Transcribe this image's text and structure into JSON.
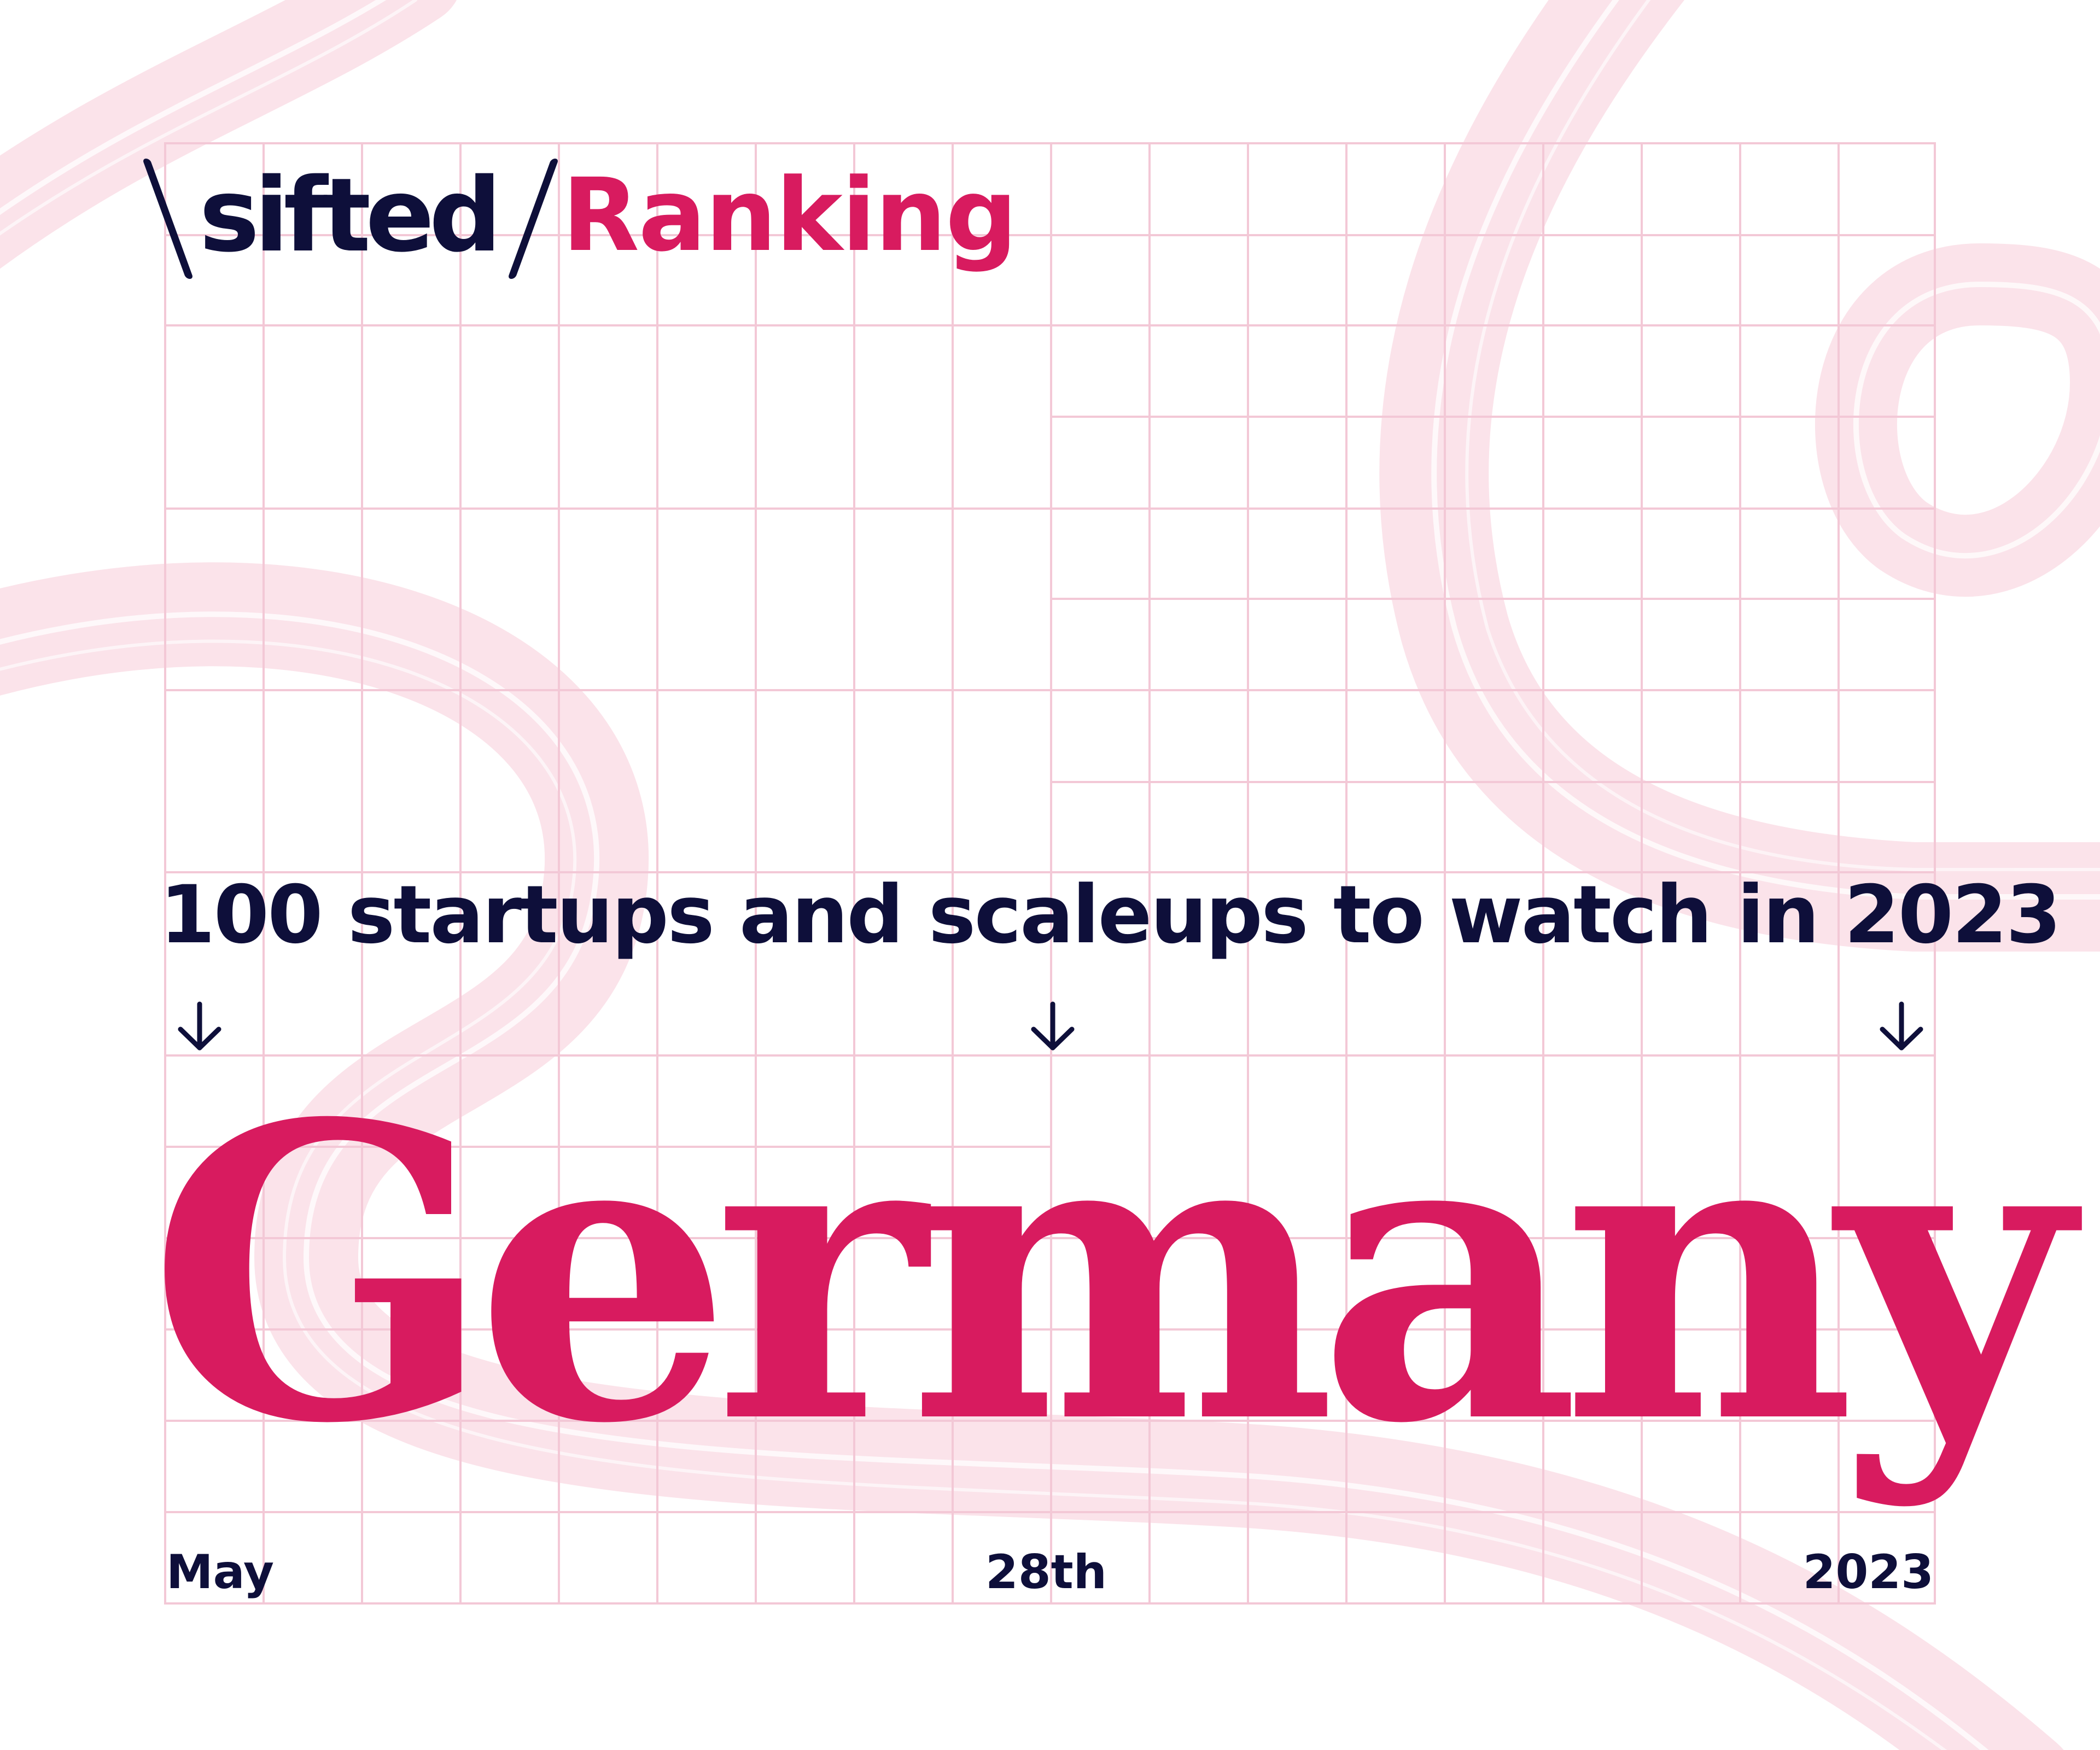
{
  "brand": {
    "name": "sifted",
    "section": "Ranking"
  },
  "headline": {
    "subtitle": "100 startups and scaleups to watch in 2023",
    "country": "Germany"
  },
  "date": {
    "month": "May",
    "day": "28th",
    "year": "2023"
  },
  "colors": {
    "navy": "#0e0f3a",
    "accent": "#d81b5f",
    "grid": "#f3c8d6",
    "swirl": "#fbe3ea",
    "background": "#ffffff"
  },
  "icons": [
    "arrow-down-icon",
    "arrow-down-icon",
    "arrow-down-icon"
  ]
}
